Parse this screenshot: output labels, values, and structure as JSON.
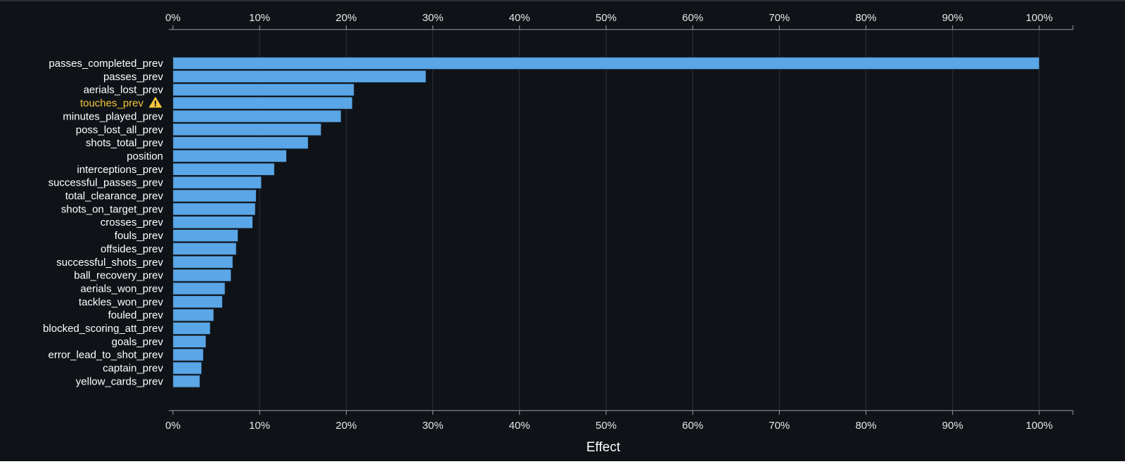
{
  "colors": {
    "background": "#0f1318",
    "bar": "#5aa6e6",
    "bar_stroke": "#1a2a3a",
    "grid": "#2e3339",
    "axis": "#9aa0a6",
    "warning": "#f2c53d"
  },
  "chart_data": {
    "type": "bar",
    "orientation": "horizontal",
    "xlabel": "Effect",
    "ylabel": "",
    "xlim": [
      0,
      100
    ],
    "x_ticks": [
      "0%",
      "10%",
      "20%",
      "30%",
      "40%",
      "50%",
      "60%",
      "70%",
      "80%",
      "90%",
      "100%"
    ],
    "grid": true,
    "axis_labels_position": "top and bottom",
    "categories": [
      "passes_completed_prev",
      "passes_prev",
      "aerials_lost_prev",
      "touches_prev",
      "minutes_played_prev",
      "poss_lost_all_prev",
      "shots_total_prev",
      "position",
      "interceptions_prev",
      "successful_passes_prev",
      "total_clearance_prev",
      "shots_on_target_prev",
      "crosses_prev",
      "fouls_prev",
      "offsides_prev",
      "successful_shots_prev",
      "ball_recovery_prev",
      "aerials_won_prev",
      "tackles_won_prev",
      "fouled_prev",
      "blocked_scoring_att_prev",
      "goals_prev",
      "error_lead_to_shot_prev",
      "captain_prev",
      "yellow_cards_prev"
    ],
    "values": [
      100,
      29.2,
      20.9,
      20.7,
      19.4,
      17.1,
      15.6,
      13.1,
      11.7,
      10.2,
      9.6,
      9.5,
      9.2,
      7.5,
      7.3,
      6.9,
      6.7,
      6.0,
      5.7,
      4.7,
      4.3,
      3.8,
      3.5,
      3.3,
      3.1
    ],
    "warning_categories": [
      "touches_prev"
    ]
  }
}
